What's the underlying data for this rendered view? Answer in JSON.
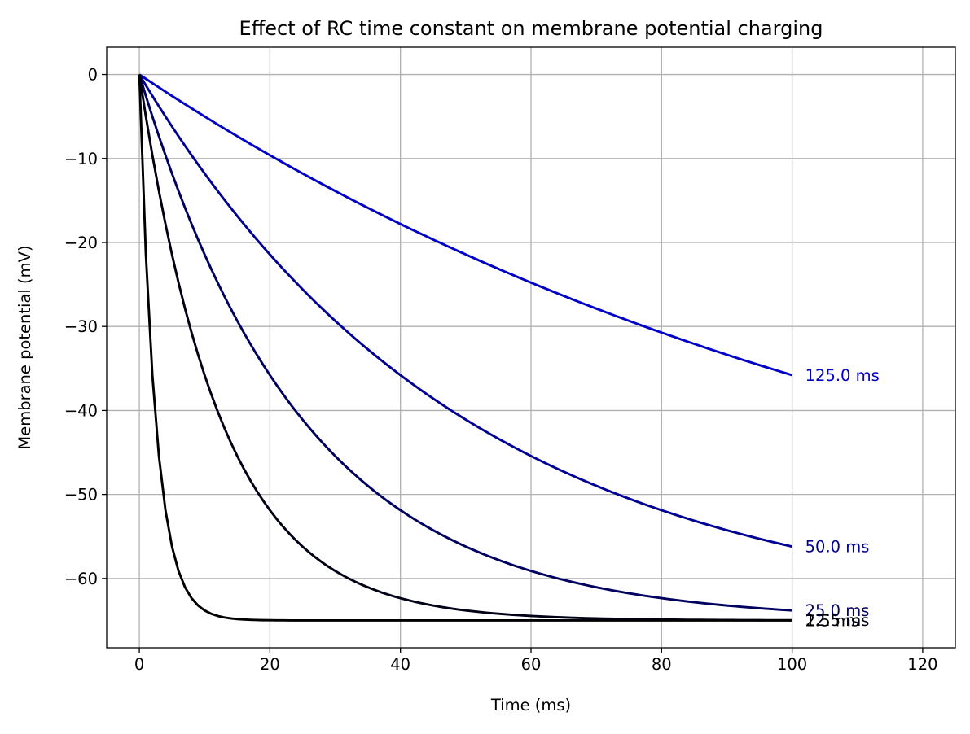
{
  "chart_data": {
    "type": "line",
    "title": "Effect of RC time constant on membrane potential charging",
    "xlabel": "Time (ms)",
    "ylabel": "Membrane potential (mV)",
    "xlim": [
      -5,
      125
    ],
    "ylim": [
      -68.25,
      3.25
    ],
    "xticks": [
      0,
      20,
      40,
      60,
      80,
      100,
      120
    ],
    "yticks": [
      0,
      -10,
      -20,
      -30,
      -40,
      -50,
      -60
    ],
    "xtick_labels": [
      "0",
      "20",
      "40",
      "60",
      "80",
      "100",
      "120"
    ],
    "ytick_labels": [
      "0",
      "−10",
      "−20",
      "−30",
      "−40",
      "−50",
      "−60"
    ],
    "grid": true,
    "v_rest": -65,
    "t_end": 100,
    "series": [
      {
        "tau": 2.5,
        "label": "2.5 ms",
        "color": "#000000"
      },
      {
        "tau": 12.5,
        "label": "12.5 ms",
        "color": "#000016"
      },
      {
        "tau": 25.0,
        "label": "25.0 ms",
        "color": "#000060"
      },
      {
        "tau": 50.0,
        "label": "50.0 ms",
        "color": "#000095"
      },
      {
        "tau": 125.0,
        "label": "125.0 ms",
        "color": "#0000c8"
      }
    ]
  }
}
